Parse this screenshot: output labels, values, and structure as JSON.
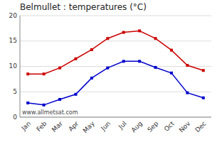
{
  "chart_data": {
    "type": "line",
    "title": "Belmullet : temperatures (°C)",
    "categories": [
      "Jan",
      "Feb",
      "Mar",
      "Apr",
      "May",
      "Jun",
      "Jul",
      "Aug",
      "Sep",
      "Oct",
      "Nov",
      "Dec"
    ],
    "series": [
      {
        "color": "#cc0000",
        "values": [
          8.5,
          8.5,
          9.7,
          11.5,
          13.3,
          15.5,
          16.7,
          17.0,
          15.5,
          13.2,
          10.2,
          9.2
        ]
      },
      {
        "color": "#0000cc",
        "values": [
          2.8,
          2.4,
          3.5,
          4.5,
          7.7,
          9.7,
          11.0,
          11.0,
          9.8,
          8.7,
          4.8,
          3.8
        ]
      }
    ],
    "ylim": [
      0,
      20
    ],
    "yticks": [
      0,
      5,
      10,
      15,
      20
    ],
    "grid": true,
    "marker": "square",
    "line_style": "solid",
    "annotations": [
      "www.allmetsat.com"
    ]
  }
}
